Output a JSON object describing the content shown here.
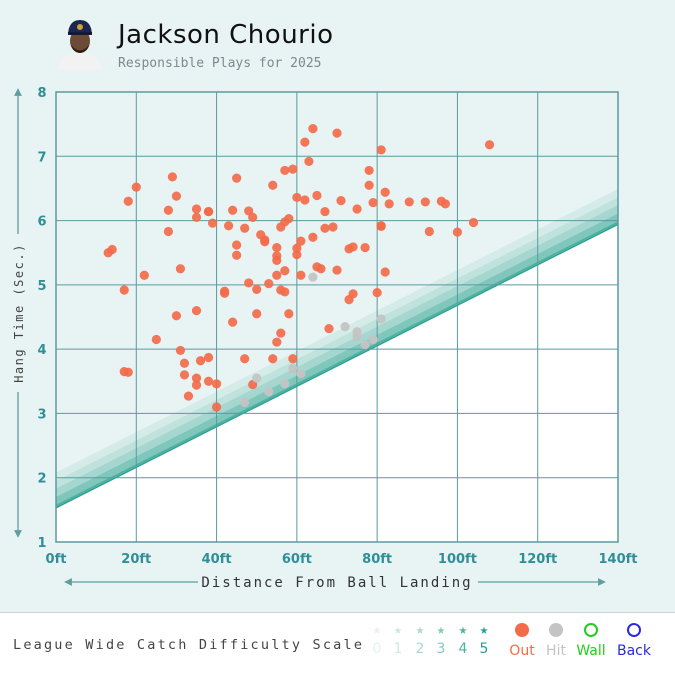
{
  "header": {
    "player_name": "Jackson Chourio",
    "subtitle": "Responsible Plays for 2025",
    "avatar_icon": "player-headshot-icon"
  },
  "chart_data": {
    "type": "scatter",
    "xlabel": "Distance From Ball Landing",
    "ylabel": "Hang Time (Sec.)",
    "xlim": [
      0,
      140
    ],
    "ylim": [
      1,
      8
    ],
    "x_ticks": [
      "0ft",
      "20ft",
      "40ft",
      "60ft",
      "80ft",
      "100ft",
      "120ft",
      "140ft"
    ],
    "y_ticks": [
      "1",
      "2",
      "3",
      "4",
      "5",
      "6",
      "7",
      "8"
    ],
    "difficulty_bands": {
      "intercepts": [
        2.08,
        1.95,
        1.83,
        1.7,
        1.58,
        1.54
      ],
      "slope": 0.0315,
      "colors": [
        "#d5ebe8",
        "#bfe2dd",
        "#a5d6cf",
        "#7fc6bb",
        "#52b0a2",
        "#26a190"
      ]
    },
    "series": [
      {
        "name": "Out",
        "color": "#f26b4a",
        "points": [
          [
            13,
            5.5
          ],
          [
            14,
            5.55
          ],
          [
            17,
            4.92
          ],
          [
            17,
            3.65
          ],
          [
            18,
            3.64
          ],
          [
            18,
            6.3
          ],
          [
            20,
            6.52
          ],
          [
            22,
            5.15
          ],
          [
            25,
            4.15
          ],
          [
            28,
            6.16
          ],
          [
            28,
            5.83
          ],
          [
            29,
            6.68
          ],
          [
            30,
            6.38
          ],
          [
            30,
            4.52
          ],
          [
            31,
            3.98
          ],
          [
            31,
            5.25
          ],
          [
            32,
            3.78
          ],
          [
            32,
            3.6
          ],
          [
            33,
            3.27
          ],
          [
            35,
            4.6
          ],
          [
            35,
            3.55
          ],
          [
            35,
            6.05
          ],
          [
            35,
            6.18
          ],
          [
            35,
            3.44
          ],
          [
            36,
            3.82
          ],
          [
            38,
            3.87
          ],
          [
            38,
            3.5
          ],
          [
            38,
            6.14
          ],
          [
            38,
            6.14
          ],
          [
            39,
            5.96
          ],
          [
            40,
            3.46
          ],
          [
            40,
            3.1
          ],
          [
            42,
            4.87
          ],
          [
            42,
            4.9
          ],
          [
            43,
            5.92
          ],
          [
            44,
            4.42
          ],
          [
            44,
            6.16
          ],
          [
            45,
            6.66
          ],
          [
            45,
            5.62
          ],
          [
            45,
            5.46
          ],
          [
            47,
            3.85
          ],
          [
            47,
            5.88
          ],
          [
            48,
            6.15
          ],
          [
            48,
            5.03
          ],
          [
            49,
            3.45
          ],
          [
            49,
            6.05
          ],
          [
            50,
            4.55
          ],
          [
            50,
            4.93
          ],
          [
            51,
            5.78
          ],
          [
            52,
            5.7
          ],
          [
            52,
            5.67
          ],
          [
            53,
            5.02
          ],
          [
            54,
            6.55
          ],
          [
            54,
            3.85
          ],
          [
            55,
            5.58
          ],
          [
            55,
            5.45
          ],
          [
            55,
            5.38
          ],
          [
            55,
            5.15
          ],
          [
            55,
            4.11
          ],
          [
            56,
            4.25
          ],
          [
            56,
            4.92
          ],
          [
            56,
            5.9
          ],
          [
            57,
            6.78
          ],
          [
            57,
            5.22
          ],
          [
            57,
            4.89
          ],
          [
            57,
            5.98
          ],
          [
            58,
            4.55
          ],
          [
            58,
            6.03
          ],
          [
            59,
            6.8
          ],
          [
            59,
            3.85
          ],
          [
            60,
            5.47
          ],
          [
            60,
            5.57
          ],
          [
            60,
            6.36
          ],
          [
            61,
            5.68
          ],
          [
            61,
            5.15
          ],
          [
            62,
            6.32
          ],
          [
            62,
            7.22
          ],
          [
            63,
            6.92
          ],
          [
            64,
            7.43
          ],
          [
            64,
            5.74
          ],
          [
            65,
            5.28
          ],
          [
            65,
            6.39
          ],
          [
            66,
            5.25
          ],
          [
            67,
            6.14
          ],
          [
            67,
            5.88
          ],
          [
            68,
            4.32
          ],
          [
            69,
            5.9
          ],
          [
            70,
            7.36
          ],
          [
            70,
            5.23
          ],
          [
            71,
            6.31
          ],
          [
            73,
            5.56
          ],
          [
            73,
            4.77
          ],
          [
            74,
            5.59
          ],
          [
            74,
            4.86
          ],
          [
            75,
            6.18
          ],
          [
            77,
            5.58
          ],
          [
            78,
            6.78
          ],
          [
            78,
            6.55
          ],
          [
            79,
            6.28
          ],
          [
            80,
            4.88
          ],
          [
            81,
            7.1
          ],
          [
            81,
            5.91
          ],
          [
            81,
            5.92
          ],
          [
            82,
            5.2
          ],
          [
            82,
            6.44
          ],
          [
            83,
            6.26
          ],
          [
            88,
            6.29
          ],
          [
            92,
            6.29
          ],
          [
            93,
            5.83
          ],
          [
            96,
            6.3
          ],
          [
            97,
            6.26
          ],
          [
            100,
            5.82
          ],
          [
            104,
            5.97
          ],
          [
            108,
            7.18
          ]
        ]
      },
      {
        "name": "Hit",
        "color": "#c4c4c4",
        "points": [
          [
            47,
            3.17
          ],
          [
            50,
            3.55
          ],
          [
            53,
            3.34
          ],
          [
            57,
            3.46
          ],
          [
            59,
            3.7
          ],
          [
            61,
            3.62
          ],
          [
            64,
            5.12
          ],
          [
            72,
            4.35
          ],
          [
            75,
            4.27
          ],
          [
            75,
            4.2
          ],
          [
            77,
            4.07
          ],
          [
            79,
            4.15
          ],
          [
            81,
            4.47
          ]
        ]
      }
    ]
  },
  "legend": {
    "title": "League Wide Catch Difficulty Scale",
    "scale": [
      {
        "num": "0",
        "color": "#e5f2f0"
      },
      {
        "num": "1",
        "color": "#cfe8e4"
      },
      {
        "num": "2",
        "color": "#a9d9d1"
      },
      {
        "num": "3",
        "color": "#84c9be"
      },
      {
        "num": "4",
        "color": "#4fb0a2"
      },
      {
        "num": "5",
        "color": "#26a190"
      }
    ],
    "keys": [
      {
        "label": "Out",
        "color": "#f26b4a",
        "style": "filled"
      },
      {
        "label": "Hit",
        "color": "#c4c4c4",
        "style": "filled"
      },
      {
        "label": "Wall",
        "color": "#22cc22",
        "style": "ring"
      },
      {
        "label": "Back",
        "color": "#2a2ae0",
        "style": "ring"
      }
    ]
  }
}
